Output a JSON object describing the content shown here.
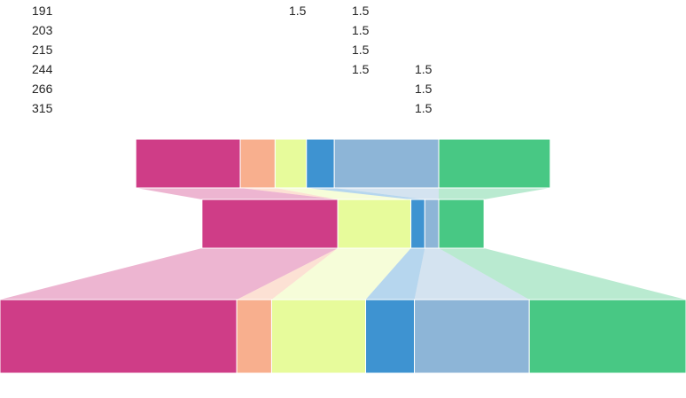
{
  "chart_data": {
    "type": "table",
    "rows": [
      {
        "label": "191",
        "cells": [
          "1.5",
          "1.5",
          ""
        ]
      },
      {
        "label": "203",
        "cells": [
          "",
          "1.5",
          ""
        ]
      },
      {
        "label": "215",
        "cells": [
          "",
          "1.5",
          ""
        ]
      },
      {
        "label": "244",
        "cells": [
          "",
          "1.5",
          "1.5"
        ]
      },
      {
        "label": "266",
        "cells": [
          "",
          "",
          "1.5"
        ]
      },
      {
        "label": "315",
        "cells": [
          "",
          "",
          "1.5"
        ]
      }
    ],
    "bands": [
      {
        "segments": [
          {
            "value": 30,
            "color": "#cf3d87"
          },
          {
            "value": 10,
            "color": "#f8af8e"
          },
          {
            "value": 9,
            "color": "#e7fb9b"
          },
          {
            "value": 8,
            "color": "#3e93d1"
          },
          {
            "value": 30,
            "color": "#8db5d7"
          },
          {
            "value": 32,
            "color": "#48c884"
          }
        ]
      },
      {
        "segments": [
          {
            "value": 39,
            "color": "#cf3d87"
          },
          {
            "value": 0,
            "color": "#f8af8e"
          },
          {
            "value": 21,
            "color": "#e7fb9b"
          },
          {
            "value": 4,
            "color": "#3e93d1"
          },
          {
            "value": 4,
            "color": "#8db5d7"
          },
          {
            "value": 13,
            "color": "#48c884"
          }
        ]
      },
      {
        "segments": [
          {
            "value": 68,
            "color": "#cf3d87"
          },
          {
            "value": 10,
            "color": "#f8af8e"
          },
          {
            "value": 27,
            "color": "#e7fb9b"
          },
          {
            "value": 14,
            "color": "#3e93d1"
          },
          {
            "value": 33,
            "color": "#8db5d7"
          },
          {
            "value": 45,
            "color": "#48c884"
          }
        ]
      }
    ]
  }
}
